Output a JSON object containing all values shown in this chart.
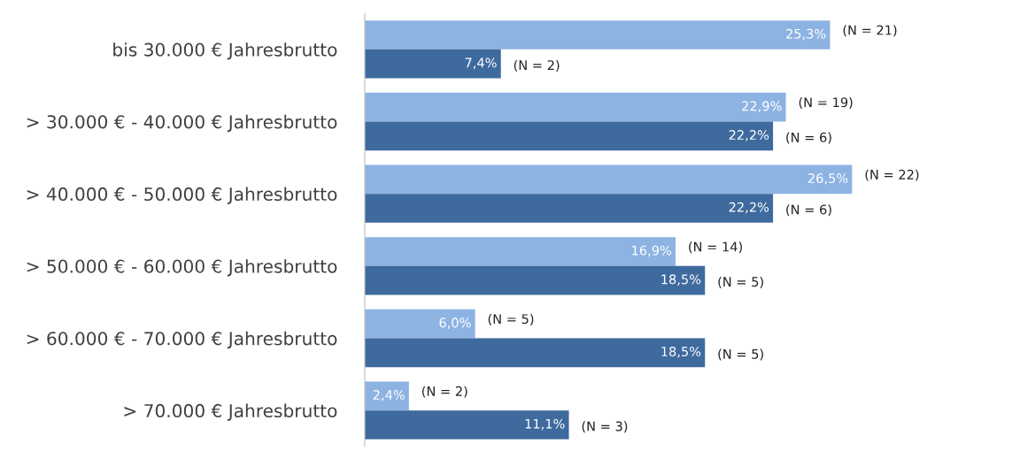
{
  "chart_data": {
    "type": "bar",
    "orientation": "horizontal",
    "categories": [
      "bis 30.000 € Jahresbrutto",
      "> 30.000 € - 40.000 € Jahresbrutto",
      "> 40.000 € - 50.000 € Jahresbrutto",
      "> 50.000 € - 60.000 € Jahresbrutto",
      "> 60.000 € - 70.000 € Jahresbrutto",
      "> 70.000 € Jahresbrutto"
    ],
    "series": [
      {
        "color": "#8db3e2",
        "values": [
          25.3,
          22.9,
          26.5,
          16.9,
          6.0,
          2.4
        ],
        "value_labels": [
          "25,3%",
          "22,9%",
          "26,5%",
          "16,9%",
          "6,0%",
          "2,4%"
        ]
      },
      {
        "color": "#3e6a9e",
        "values": [
          7.4,
          22.2,
          22.2,
          18.5,
          18.5,
          11.1
        ],
        "value_labels": [
          "7,4%",
          "22,2%",
          "22,2%",
          "18,5%",
          "18,5%",
          "11,1%"
        ]
      }
    ],
    "annotations": [
      "(N = 21)",
      "(N = 2)",
      "(N = 19)",
      "(N = 6)",
      "(N = 22)",
      "(N = 6)",
      "(N = 14)",
      "(N = 5)",
      "(N = 5)",
      "(N = 5)",
      "(N = 2)",
      "(N = 3)"
    ],
    "grid": false,
    "legend": false
  }
}
